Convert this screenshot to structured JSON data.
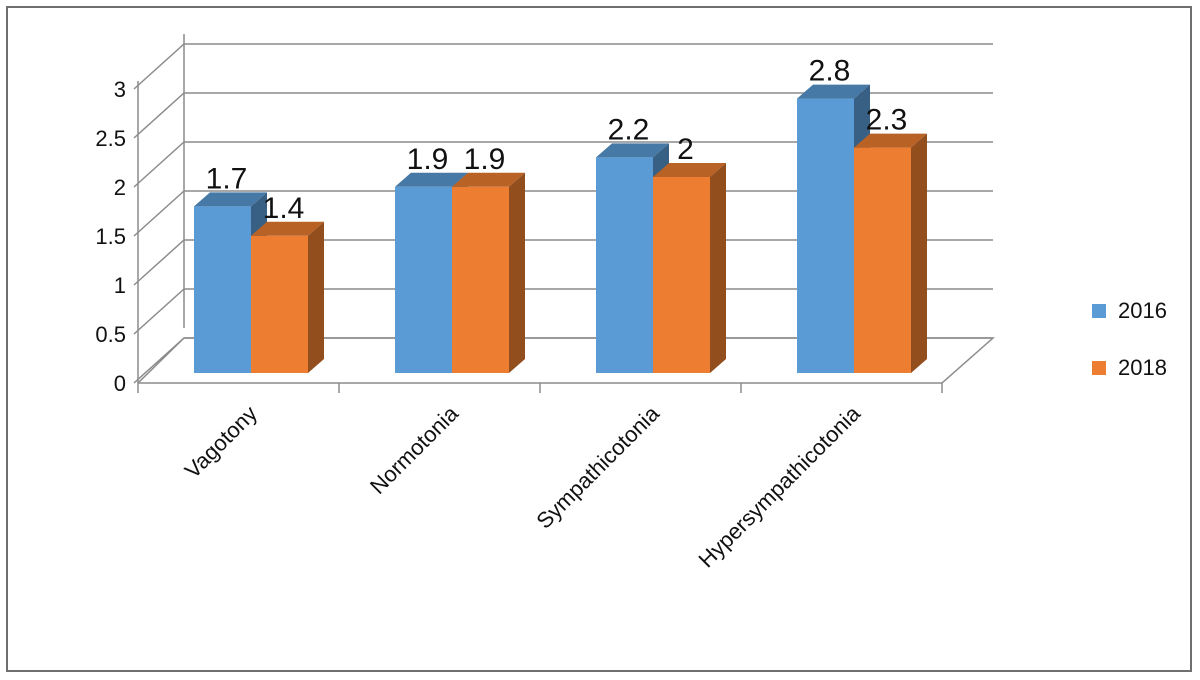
{
  "chart_data": {
    "type": "bar",
    "title": "",
    "xlabel": "",
    "ylabel": "",
    "categories": [
      "Vagotony",
      "Normotonia",
      "Sympathicotonia",
      "Hypersympathicotonia"
    ],
    "series": [
      {
        "name": "2016",
        "values": [
          1.7,
          1.9,
          2.2,
          2.8
        ],
        "color": "#5b9bd5"
      },
      {
        "name": "2018",
        "values": [
          1.4,
          1.9,
          2.0,
          2.3
        ],
        "color": "#ed7d31"
      }
    ],
    "data_labels": [
      [
        "1.7",
        "1.9",
        "2.2",
        "2.8"
      ],
      [
        "1.4",
        "1.9",
        "2",
        "2.3"
      ]
    ],
    "yticks": [
      "0",
      "0.5",
      "1",
      "1.5",
      "2",
      "2.5",
      "3"
    ],
    "ylim": [
      0,
      3
    ],
    "grid": true,
    "legend_position": "right",
    "style": "3d-clustered-column"
  }
}
